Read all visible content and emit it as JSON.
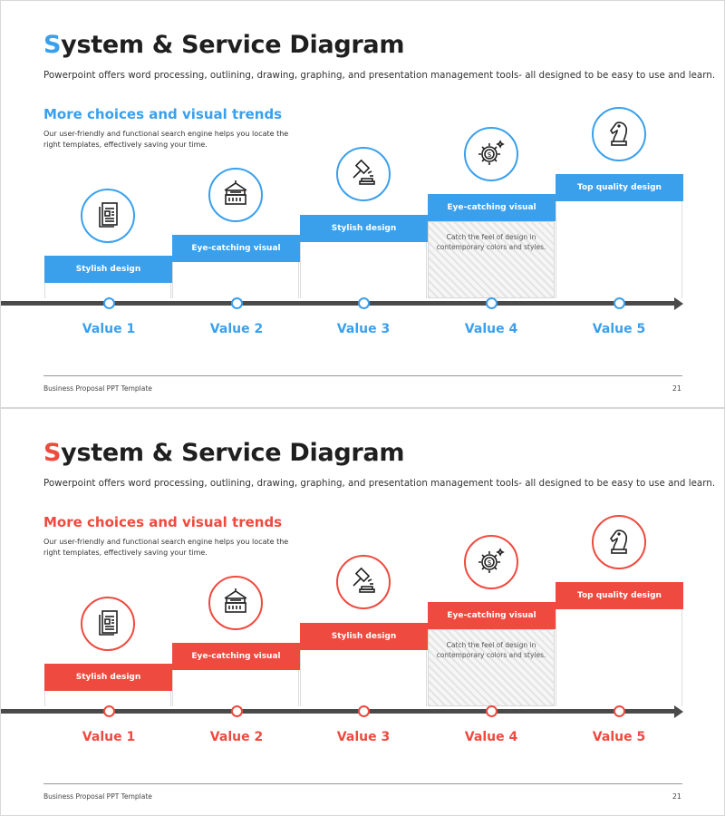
{
  "slides": [
    {
      "accent": "#3aa0ec",
      "title_first": "S",
      "title_rest": "ystem & Service Diagram",
      "subtitle": "Powerpoint offers word processing, outlining, drawing, graphing, and presentation management tools- all designed to be easy to use and learn.",
      "section_heading": "More choices and visual trends",
      "section_text": "Our user-friendly and functional search engine helps you locate the right templates, effectively saving your time.",
      "steps": [
        {
          "bar_label": "Stylish design",
          "icon": "document-icon",
          "value_label": "Value 1"
        },
        {
          "bar_label": "Eye-catching visual",
          "icon": "building-icon",
          "value_label": "Value 2"
        },
        {
          "bar_label": "Stylish design",
          "icon": "gavel-icon",
          "value_label": "Value 3"
        },
        {
          "bar_label": "Eye-catching visual",
          "icon": "gear-dollar-icon",
          "value_label": "Value 4",
          "note": "Catch the feel of design in contemporary colors and styles."
        },
        {
          "bar_label": "Top quality design",
          "icon": "chess-knight-icon",
          "value_label": "Value 5"
        }
      ],
      "footer_text": "Business Proposal PPT Template",
      "page_number": "21"
    },
    {
      "accent": "#ee4a3f",
      "title_first": "S",
      "title_rest": "ystem & Service Diagram",
      "subtitle": "Powerpoint offers word processing, outlining, drawing, graphing, and presentation management tools- all designed to be easy to use and learn.",
      "section_heading": "More choices and visual trends",
      "section_text": "Our user-friendly and functional search engine helps you locate the right templates, effectively saving your time.",
      "steps": [
        {
          "bar_label": "Stylish design",
          "icon": "document-icon",
          "value_label": "Value 1"
        },
        {
          "bar_label": "Eye-catching visual",
          "icon": "building-icon",
          "value_label": "Value 2"
        },
        {
          "bar_label": "Stylish design",
          "icon": "gavel-icon",
          "value_label": "Value 3"
        },
        {
          "bar_label": "Eye-catching visual",
          "icon": "gear-dollar-icon",
          "value_label": "Value 4",
          "note": "Catch the feel of design in contemporary colors and styles."
        },
        {
          "bar_label": "Top quality design",
          "icon": "chess-knight-icon",
          "value_label": "Value 5"
        }
      ],
      "footer_text": "Business Proposal PPT Template",
      "page_number": "21"
    }
  ]
}
